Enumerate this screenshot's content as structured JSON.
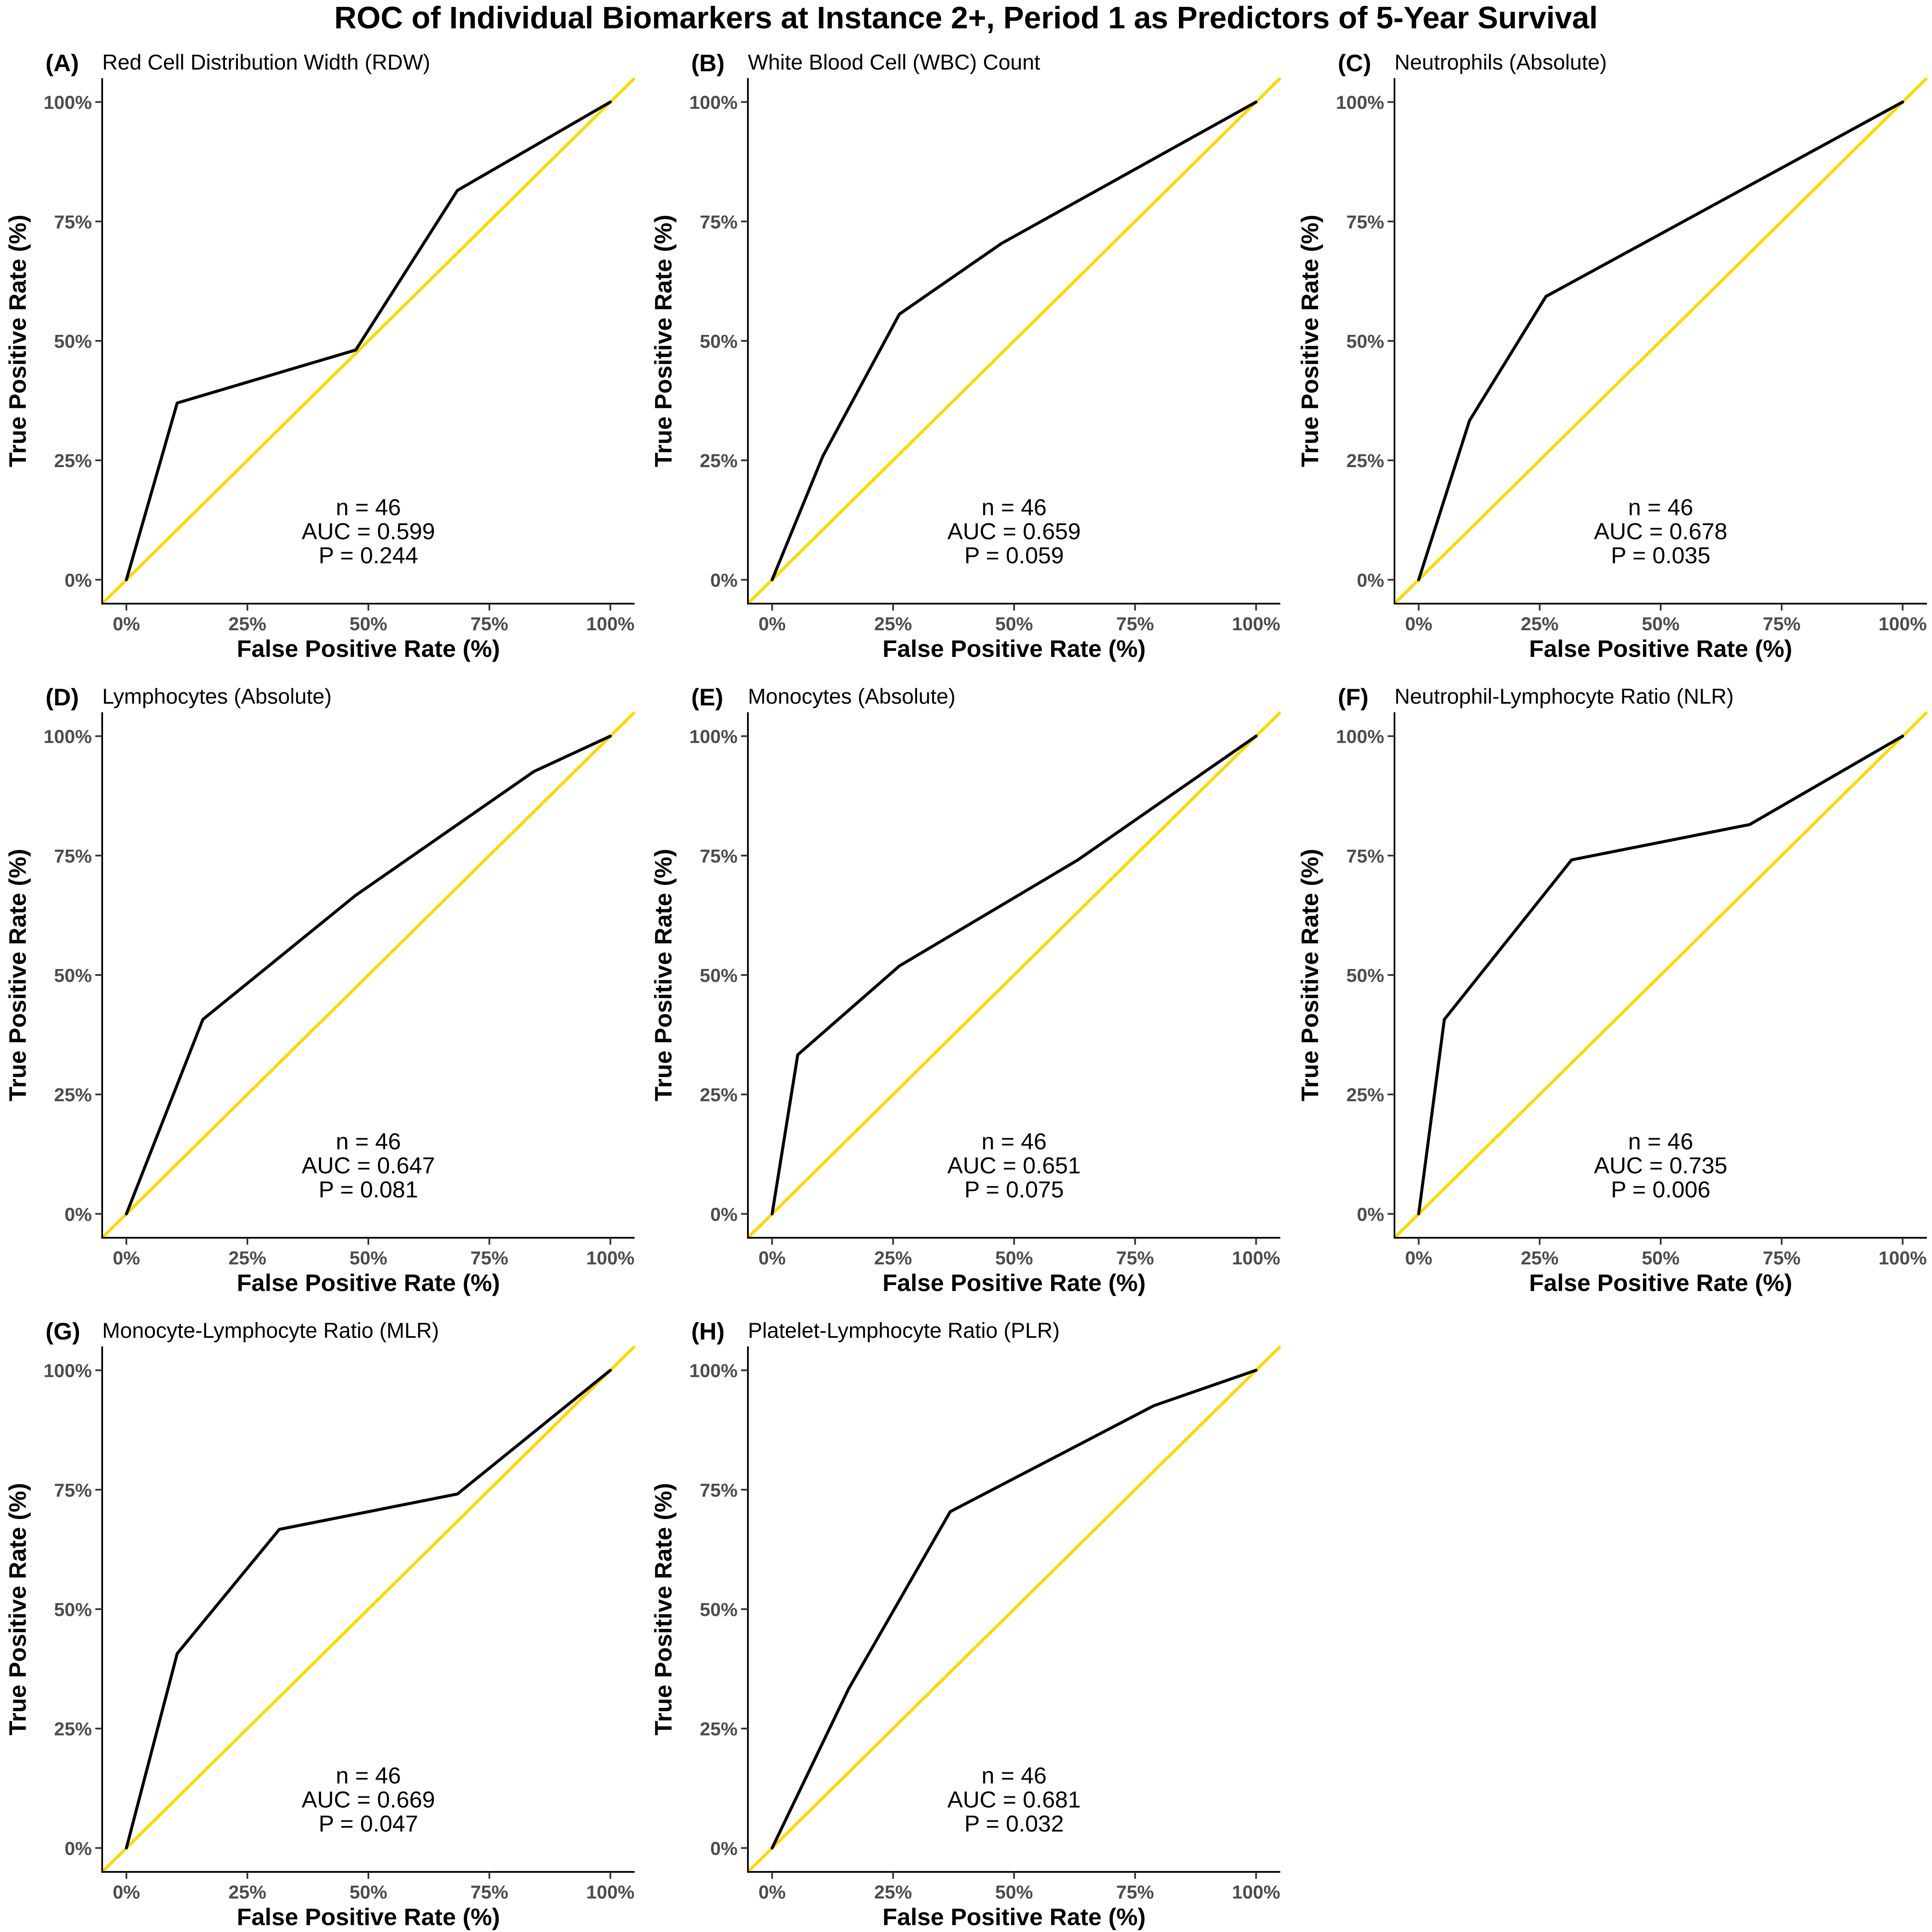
{
  "figure": {
    "title": "ROC of Individual Biomarkers at Instance 2+, Period 1 as Predictors of 5-Year Survival"
  },
  "colors": {
    "roc_curve": "#000000",
    "reference_line": "#FFD700",
    "tick_text": "#4d4d4d",
    "background": "#ffffff"
  },
  "chart_data": [
    {
      "type": "line",
      "tag": "(A)",
      "title": "Red Cell Distribution Width (RDW)",
      "xlabel": "False Positive Rate (%)",
      "ylabel": "True Positive Rate (%)",
      "xlim": [
        -5,
        105
      ],
      "ylim": [
        -5,
        105
      ],
      "xticks": [
        0,
        25,
        50,
        75,
        100
      ],
      "yticks": [
        0,
        25,
        50,
        75,
        100
      ],
      "xtick_labels": [
        "0%",
        "25%",
        "50%",
        "75%",
        "100%"
      ],
      "ytick_labels": [
        "0%",
        "25%",
        "50%",
        "75%",
        "100%"
      ],
      "reference_line": {
        "x": [
          -5,
          105
        ],
        "y": [
          -5,
          105
        ]
      },
      "x": [
        0,
        10.5,
        47.4,
        68.4,
        100
      ],
      "y": [
        0,
        37.0,
        48.1,
        81.5,
        100
      ],
      "annotations": [
        "n = 46",
        "AUC = 0.599",
        "P = 0.244"
      ],
      "grid": false,
      "legend": "none"
    },
    {
      "type": "line",
      "tag": "(B)",
      "title": "White Blood Cell (WBC) Count",
      "xlabel": "False Positive Rate (%)",
      "ylabel": "True Positive Rate (%)",
      "xlim": [
        -5,
        105
      ],
      "ylim": [
        -5,
        105
      ],
      "xticks": [
        0,
        25,
        50,
        75,
        100
      ],
      "yticks": [
        0,
        25,
        50,
        75,
        100
      ],
      "xtick_labels": [
        "0%",
        "25%",
        "50%",
        "75%",
        "100%"
      ],
      "ytick_labels": [
        "0%",
        "25%",
        "50%",
        "75%",
        "100%"
      ],
      "reference_line": {
        "x": [
          -5,
          105
        ],
        "y": [
          -5,
          105
        ]
      },
      "x": [
        0,
        10.5,
        26.3,
        47.4,
        100
      ],
      "y": [
        0,
        25.9,
        55.6,
        70.4,
        100
      ],
      "annotations": [
        "n = 46",
        "AUC = 0.659",
        "P = 0.059"
      ],
      "grid": false,
      "legend": "none"
    },
    {
      "type": "line",
      "tag": "(C)",
      "title": "Neutrophils (Absolute)",
      "xlabel": "False Positive Rate (%)",
      "ylabel": "True Positive Rate (%)",
      "xlim": [
        -5,
        105
      ],
      "ylim": [
        -5,
        105
      ],
      "xticks": [
        0,
        25,
        50,
        75,
        100
      ],
      "yticks": [
        0,
        25,
        50,
        75,
        100
      ],
      "xtick_labels": [
        "0%",
        "25%",
        "50%",
        "75%",
        "100%"
      ],
      "ytick_labels": [
        "0%",
        "25%",
        "50%",
        "75%",
        "100%"
      ],
      "reference_line": {
        "x": [
          -5,
          105
        ],
        "y": [
          -5,
          105
        ]
      },
      "x": [
        0,
        10.5,
        26.3,
        100
      ],
      "y": [
        0,
        33.3,
        59.3,
        100
      ],
      "annotations": [
        "n = 46",
        "AUC = 0.678",
        "P = 0.035"
      ],
      "grid": false,
      "legend": "none"
    },
    {
      "type": "line",
      "tag": "(D)",
      "title": "Lymphocytes (Absolute)",
      "xlabel": "False Positive Rate (%)",
      "ylabel": "True Positive Rate (%)",
      "xlim": [
        -5,
        105
      ],
      "ylim": [
        -5,
        105
      ],
      "xticks": [
        0,
        25,
        50,
        75,
        100
      ],
      "yticks": [
        0,
        25,
        50,
        75,
        100
      ],
      "xtick_labels": [
        "0%",
        "25%",
        "50%",
        "75%",
        "100%"
      ],
      "ytick_labels": [
        "0%",
        "25%",
        "50%",
        "75%",
        "100%"
      ],
      "reference_line": {
        "x": [
          -5,
          105
        ],
        "y": [
          -5,
          105
        ]
      },
      "x": [
        0,
        15.8,
        47.4,
        84.2,
        100
      ],
      "y": [
        0,
        40.7,
        66.7,
        92.6,
        100
      ],
      "annotations": [
        "n = 46",
        "AUC = 0.647",
        "P = 0.081"
      ],
      "grid": false,
      "legend": "none"
    },
    {
      "type": "line",
      "tag": "(E)",
      "title": "Monocytes (Absolute)",
      "xlabel": "False Positive Rate (%)",
      "ylabel": "True Positive Rate (%)",
      "xlim": [
        -5,
        105
      ],
      "ylim": [
        -5,
        105
      ],
      "xticks": [
        0,
        25,
        50,
        75,
        100
      ],
      "yticks": [
        0,
        25,
        50,
        75,
        100
      ],
      "xtick_labels": [
        "0%",
        "25%",
        "50%",
        "75%",
        "100%"
      ],
      "ytick_labels": [
        "0%",
        "25%",
        "50%",
        "75%",
        "100%"
      ],
      "reference_line": {
        "x": [
          -5,
          105
        ],
        "y": [
          -5,
          105
        ]
      },
      "x": [
        0,
        5.3,
        26.3,
        63.2,
        100
      ],
      "y": [
        0,
        33.3,
        51.9,
        74.1,
        100
      ],
      "annotations": [
        "n = 46",
        "AUC = 0.651",
        "P = 0.075"
      ],
      "grid": false,
      "legend": "none"
    },
    {
      "type": "line",
      "tag": "(F)",
      "title": "Neutrophil-Lymphocyte Ratio (NLR)",
      "xlabel": "False Positive Rate (%)",
      "ylabel": "True Positive Rate (%)",
      "xlim": [
        -5,
        105
      ],
      "ylim": [
        -5,
        105
      ],
      "xticks": [
        0,
        25,
        50,
        75,
        100
      ],
      "yticks": [
        0,
        25,
        50,
        75,
        100
      ],
      "xtick_labels": [
        "0%",
        "25%",
        "50%",
        "75%",
        "100%"
      ],
      "ytick_labels": [
        "0%",
        "25%",
        "50%",
        "75%",
        "100%"
      ],
      "reference_line": {
        "x": [
          -5,
          105
        ],
        "y": [
          -5,
          105
        ]
      },
      "x": [
        0,
        5.3,
        31.6,
        68.4,
        100
      ],
      "y": [
        0,
        40.7,
        74.1,
        81.5,
        100
      ],
      "annotations": [
        "n = 46",
        "AUC = 0.735",
        "P = 0.006"
      ],
      "grid": false,
      "legend": "none"
    },
    {
      "type": "line",
      "tag": "(G)",
      "title": "Monocyte-Lymphocyte Ratio (MLR)",
      "xlabel": "False Positive Rate (%)",
      "ylabel": "True Positive Rate (%)",
      "xlim": [
        -5,
        105
      ],
      "ylim": [
        -5,
        105
      ],
      "xticks": [
        0,
        25,
        50,
        75,
        100
      ],
      "yticks": [
        0,
        25,
        50,
        75,
        100
      ],
      "xtick_labels": [
        "0%",
        "25%",
        "50%",
        "75%",
        "100%"
      ],
      "ytick_labels": [
        "0%",
        "25%",
        "50%",
        "75%",
        "100%"
      ],
      "reference_line": {
        "x": [
          -5,
          105
        ],
        "y": [
          -5,
          105
        ]
      },
      "x": [
        0,
        10.5,
        31.6,
        68.4,
        100
      ],
      "y": [
        0,
        40.7,
        66.7,
        74.1,
        100
      ],
      "annotations": [
        "n = 46",
        "AUC = 0.669",
        "P = 0.047"
      ],
      "grid": false,
      "legend": "none"
    },
    {
      "type": "line",
      "tag": "(H)",
      "title": "Platelet-Lymphocyte Ratio (PLR)",
      "xlabel": "False Positive Rate (%)",
      "ylabel": "True Positive Rate (%)",
      "xlim": [
        -5,
        105
      ],
      "ylim": [
        -5,
        105
      ],
      "xticks": [
        0,
        25,
        50,
        75,
        100
      ],
      "yticks": [
        0,
        25,
        50,
        75,
        100
      ],
      "xtick_labels": [
        "0%",
        "25%",
        "50%",
        "75%",
        "100%"
      ],
      "ytick_labels": [
        "0%",
        "25%",
        "50%",
        "75%",
        "100%"
      ],
      "reference_line": {
        "x": [
          -5,
          105
        ],
        "y": [
          -5,
          105
        ]
      },
      "x": [
        0,
        15.8,
        36.8,
        78.9,
        100
      ],
      "y": [
        0,
        33.3,
        70.4,
        92.6,
        100
      ],
      "annotations": [
        "n = 46",
        "AUC = 0.681",
        "P = 0.032"
      ],
      "grid": false,
      "legend": "none"
    }
  ]
}
